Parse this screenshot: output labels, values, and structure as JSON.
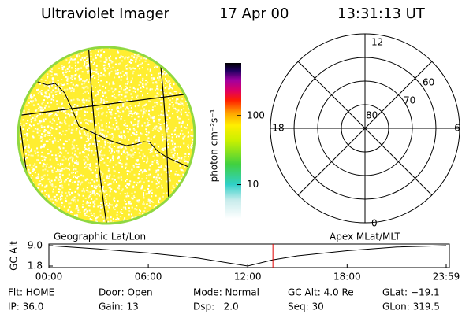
{
  "header": {
    "instrument": "Ultraviolet Imager",
    "date": "17 Apr 00",
    "time": "13:31:13 UT"
  },
  "colorbar": {
    "label": "photon cm⁻²s⁻¹",
    "scale": "log",
    "range": [
      3.2,
      577
    ],
    "ticks": [
      10,
      100
    ]
  },
  "dial": {
    "mlt_labels": [
      "12",
      "18",
      "6",
      "0"
    ],
    "mlat_labels": [
      "80",
      "70",
      "60"
    ]
  },
  "panel_labels": {
    "left": "Geographic Lat/Lon",
    "right": "Apex MLat/MLT"
  },
  "orbit_plot": {
    "ylabel": "GC Alt",
    "ylim": [
      1.8,
      9.0
    ],
    "yticks": [
      {
        "value": 9.0,
        "label": "9.0"
      },
      {
        "value": 1.8,
        "label": "1.8"
      }
    ],
    "xlim": [
      0,
      23.98
    ],
    "xticks": [
      {
        "value": 0,
        "label": "00:00"
      },
      {
        "value": 6,
        "label": "06:00"
      },
      {
        "value": 12,
        "label": "12:00"
      },
      {
        "value": 18,
        "label": "18:00"
      },
      {
        "value": 23.98,
        "label": "23:59"
      }
    ],
    "x": [
      0,
      3,
      6,
      9,
      12,
      13.52,
      15,
      18,
      21,
      23.98
    ],
    "values": [
      9.0,
      7.8,
      6.4,
      4.6,
      1.8,
      4.0,
      5.4,
      7.2,
      8.5,
      9.0
    ],
    "marker_hour": 13.52,
    "marker_color": "#e00000"
  },
  "status": [
    [
      "Flt: HOME",
      "Door: Open",
      "Mode: Normal",
      "GC Alt: 4.0 Re",
      "GLat: −19.1"
    ],
    [
      "IP: 36.0",
      "Gain: 13",
      "Dsp:   2.0",
      "Seq: 30",
      "GLon: 319.5"
    ]
  ]
}
